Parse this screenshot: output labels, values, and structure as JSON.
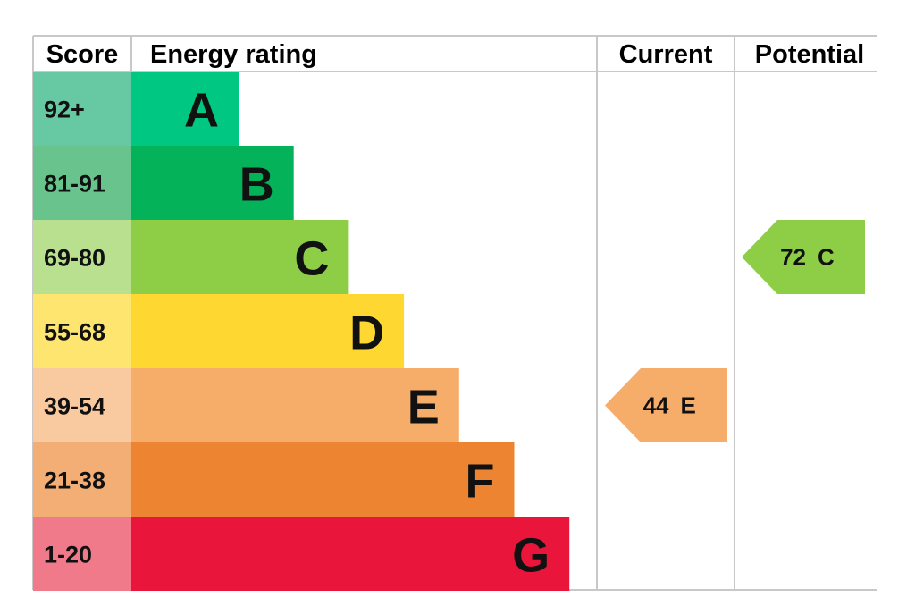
{
  "header": {
    "score": "Score",
    "rating": "Energy rating",
    "current": "Current",
    "potential": "Potential"
  },
  "bands": [
    {
      "score": "92+",
      "letter": "A",
      "color": "#00c781",
      "score_color": "#66c9a4"
    },
    {
      "score": "81-91",
      "letter": "B",
      "color": "#04b25a",
      "score_color": "#68c38c"
    },
    {
      "score": "69-80",
      "letter": "C",
      "color": "#8dce46",
      "score_color": "#b8e08f"
    },
    {
      "score": "55-68",
      "letter": "D",
      "color": "#fed731",
      "score_color": "#fde56f"
    },
    {
      "score": "39-54",
      "letter": "E",
      "color": "#f7ad6a",
      "score_color": "#f9c9a0"
    },
    {
      "score": "21-38",
      "letter": "F",
      "color": "#ed8431",
      "score_color": "#f2ae74"
    },
    {
      "score": "1-20",
      "letter": "G",
      "color": "#e9153b",
      "score_color": "#f0798a"
    }
  ],
  "current": {
    "value": 44,
    "letter": "E"
  },
  "potential": {
    "value": 72,
    "letter": "C"
  }
}
